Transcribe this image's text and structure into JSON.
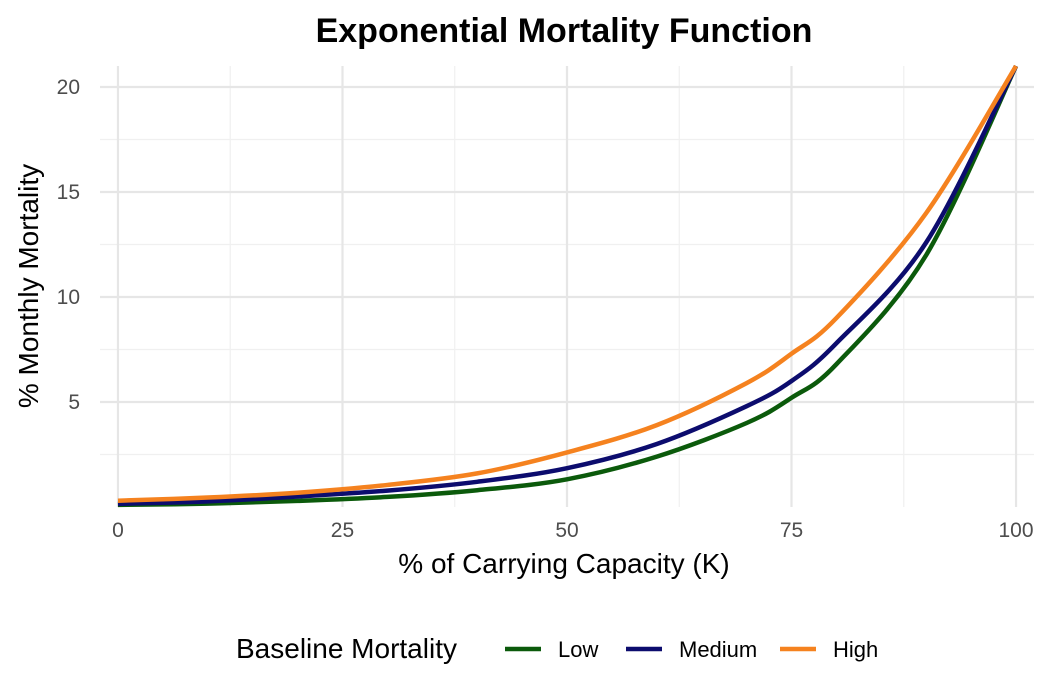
{
  "chart_data": {
    "type": "line",
    "title": "Exponential Mortality Function",
    "xlabel": "% of Carrying Capacity (K)",
    "ylabel": "% Monthly Mortality",
    "xlim": [
      -2,
      102
    ],
    "ylim": [
      0,
      21
    ],
    "x_ticks": [
      0,
      25,
      50,
      75,
      100
    ],
    "x_tick_labels": [
      "0",
      "25",
      "50",
      "75",
      "100"
    ],
    "y_ticks": [
      5,
      10,
      15,
      20
    ],
    "y_tick_labels": [
      "5",
      "10",
      "15",
      "20"
    ],
    "x_minor": [
      12.5,
      37.5,
      62.5,
      87.5
    ],
    "y_minor": [
      2.5,
      7.5,
      12.5,
      17.5
    ],
    "grid": true,
    "legend": {
      "title": "Baseline Mortality",
      "position": "bottom"
    },
    "x": [
      0,
      10,
      20,
      30,
      40,
      50,
      60,
      70,
      75,
      80,
      90,
      100
    ],
    "series": [
      {
        "name": "Low",
        "color": "#0b5a0b",
        "values": [
          0.1,
          0.16,
          0.29,
          0.48,
          0.8,
          1.32,
          2.4,
          4.0,
          5.2,
          6.8,
          12.0,
          21.0
        ]
      },
      {
        "name": "Medium",
        "color": "#0c0c6e",
        "values": [
          0.15,
          0.27,
          0.5,
          0.78,
          1.2,
          1.85,
          3.0,
          4.8,
          6.0,
          7.8,
          12.6,
          21.0
        ]
      },
      {
        "name": "High",
        "color": "#f5821f",
        "values": [
          0.3,
          0.45,
          0.68,
          1.05,
          1.6,
          2.6,
          3.9,
          5.9,
          7.3,
          9.0,
          14.0,
          21.0
        ]
      }
    ]
  }
}
